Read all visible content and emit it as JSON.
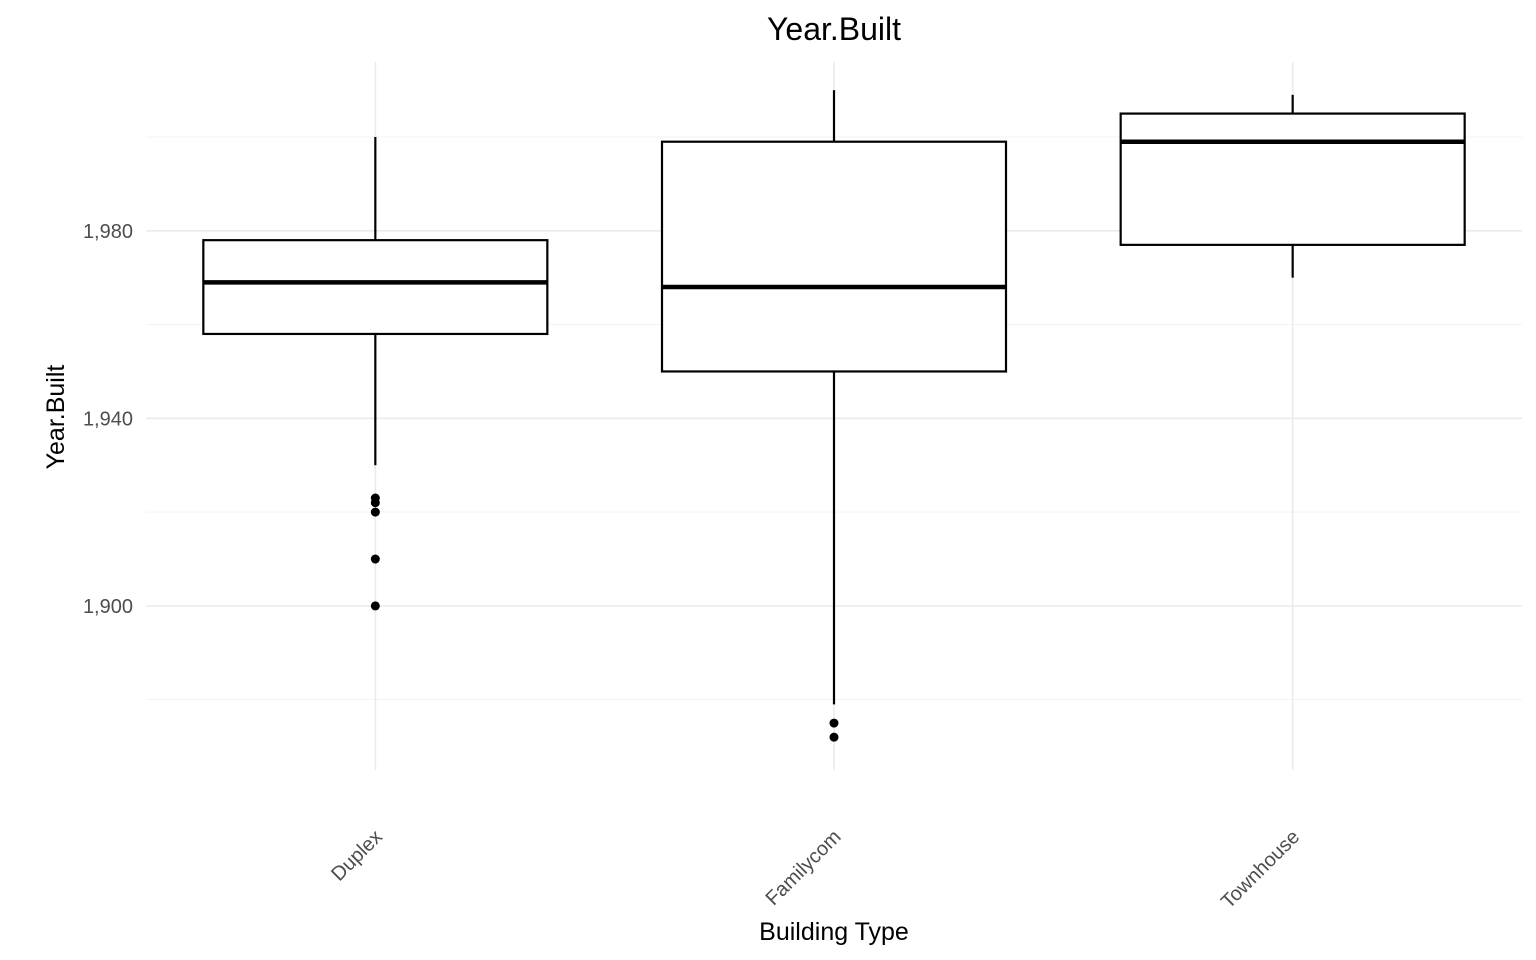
{
  "chart_data": {
    "type": "boxplot",
    "title": "Year.Built",
    "xlabel": "Building Type",
    "ylabel": "Year.Built",
    "ylim": [
      1865,
      2016
    ],
    "y_ticks": [
      1900,
      1940,
      1980
    ],
    "y_tick_labels": [
      "1,900",
      "1,940",
      "1,980"
    ],
    "y_minor_ticks": [
      1880,
      1920,
      1960,
      2000
    ],
    "grid": true,
    "x_tick_rotation_deg": -45,
    "categories": [
      "Duplex",
      "Familycom",
      "Townhouse"
    ],
    "boxes": [
      {
        "category": "Duplex",
        "lower_whisker": 1930,
        "q1": 1958,
        "median": 1969,
        "q3": 1978,
        "upper_whisker": 2000,
        "outliers": [
          1900,
          1910,
          1920,
          1922,
          1923
        ]
      },
      {
        "category": "Familycom",
        "lower_whisker": 1879,
        "q1": 1950,
        "median": 1968,
        "q3": 1999,
        "upper_whisker": 2010,
        "outliers": [
          1872,
          1875
        ]
      },
      {
        "category": "Townhouse",
        "lower_whisker": 1970,
        "q1": 1977,
        "median": 1999,
        "q3": 2005,
        "upper_whisker": 2009,
        "outliers": []
      }
    ]
  }
}
